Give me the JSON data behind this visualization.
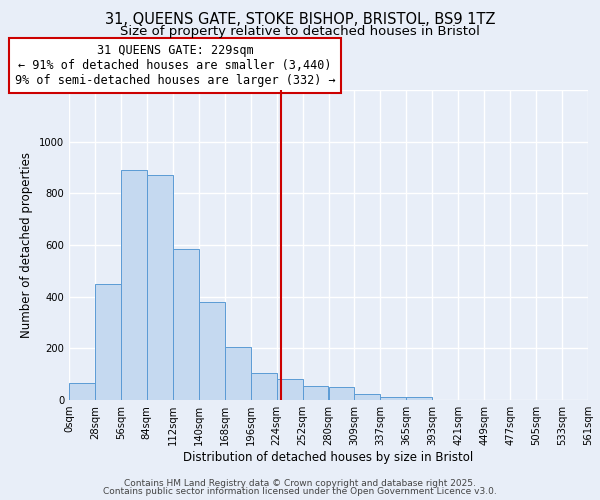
{
  "title_line1": "31, QUEENS GATE, STOKE BISHOP, BRISTOL, BS9 1TZ",
  "title_line2": "Size of property relative to detached houses in Bristol",
  "xlabel": "Distribution of detached houses by size in Bristol",
  "ylabel": "Number of detached properties",
  "bar_values": [
    65,
    450,
    890,
    870,
    585,
    380,
    205,
    105,
    80,
    55,
    50,
    25,
    10,
    10,
    0,
    0,
    0,
    0,
    0,
    0
  ],
  "bin_edges": [
    0,
    28,
    56,
    84,
    112,
    140,
    168,
    196,
    224,
    252,
    280,
    308,
    336,
    364,
    392,
    420,
    448,
    476,
    504,
    532,
    560
  ],
  "bar_color": "#c5d9f0",
  "bar_edge_color": "#5b9bd5",
  "vline_x": 229,
  "vline_color": "#cc0000",
  "annotation_text": "31 QUEENS GATE: 229sqm\n← 91% of detached houses are smaller (3,440)\n9% of semi-detached houses are larger (332) →",
  "annotation_box_edge": "#cc0000",
  "annotation_box_face": "white",
  "annotation_fontsize": 8.5,
  "ylim": [
    0,
    1200
  ],
  "xlim": [
    0,
    560
  ],
  "bg_color": "#e8eef8",
  "plot_bg_color": "#e8eef8",
  "grid_color": "#ffffff",
  "tick_labels": [
    "0sqm",
    "28sqm",
    "56sqm",
    "84sqm",
    "112sqm",
    "140sqm",
    "168sqm",
    "196sqm",
    "224sqm",
    "252sqm",
    "280sqm",
    "309sqm",
    "337sqm",
    "365sqm",
    "393sqm",
    "421sqm",
    "449sqm",
    "477sqm",
    "505sqm",
    "533sqm",
    "561sqm"
  ],
  "footer_line1": "Contains HM Land Registry data © Crown copyright and database right 2025.",
  "footer_line2": "Contains public sector information licensed under the Open Government Licence v3.0.",
  "title_fontsize": 10.5,
  "subtitle_fontsize": 9.5,
  "ylabel_fontsize": 8.5,
  "xlabel_fontsize": 8.5,
  "tick_fontsize": 7.2
}
